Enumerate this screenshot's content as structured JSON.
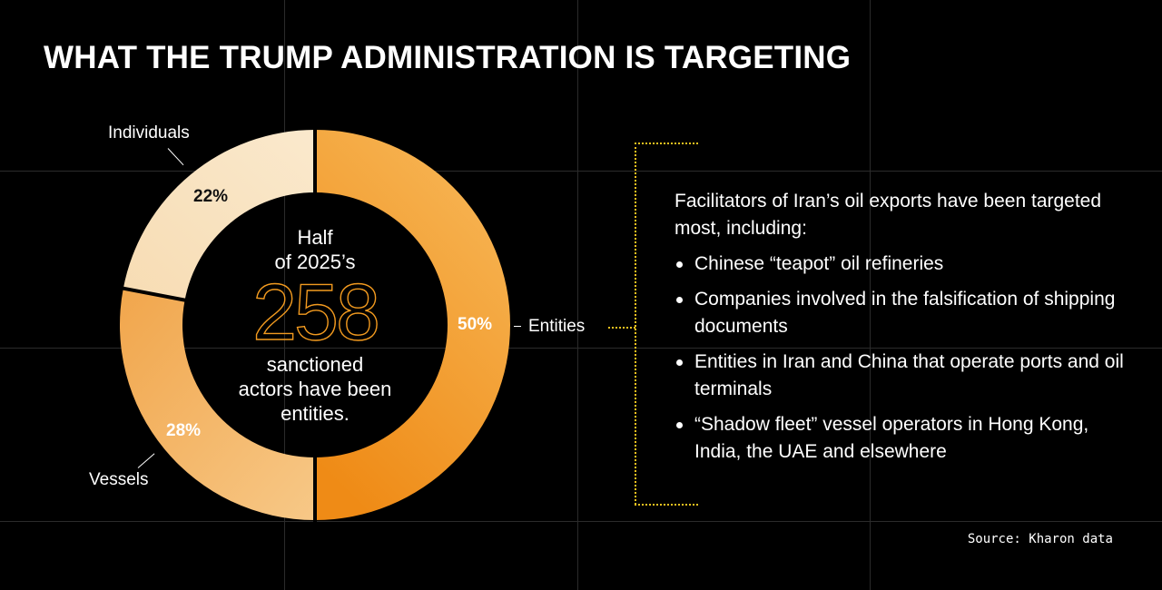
{
  "title": "WHAT THE TRUMP ADMINISTRATION IS TARGETING",
  "chart_data": {
    "type": "pie",
    "categories": [
      "Entities",
      "Vessels",
      "Individuals"
    ],
    "values": [
      50,
      28,
      22
    ],
    "value_labels": [
      "50%",
      "28%",
      "22%"
    ],
    "colors": {
      "Entities": [
        "#ef8b16",
        "#f7b757"
      ],
      "Vessels": [
        "#f7c887",
        "#f1a64c"
      ],
      "Individuals": [
        "#f7dcb3",
        "#fae9cd"
      ]
    },
    "legend": "none",
    "center_text": {
      "line1": "Half",
      "line2": "of 2025’s",
      "number": "258",
      "line3": "sanctioned",
      "line4": "actors have been",
      "line5": "entities."
    }
  },
  "panel": {
    "intro": "Facilitators of Iran’s oil exports have been targeted most, including:",
    "items": [
      "Chinese “teapot” oil refineries",
      "Companies involved in the falsification of shipping documents",
      "Entities in Iran and China that operate ports and oil terminals",
      "“Shadow fleet” vessel operators in Hong Kong, India, the UAE and elsewhere"
    ]
  },
  "source": "Source: Kharon data",
  "colors": {
    "background": "#000000",
    "accent_orange": "#f29a1f",
    "bracket_yellow": "#f2c21f",
    "grid": "#2b2b2b"
  }
}
